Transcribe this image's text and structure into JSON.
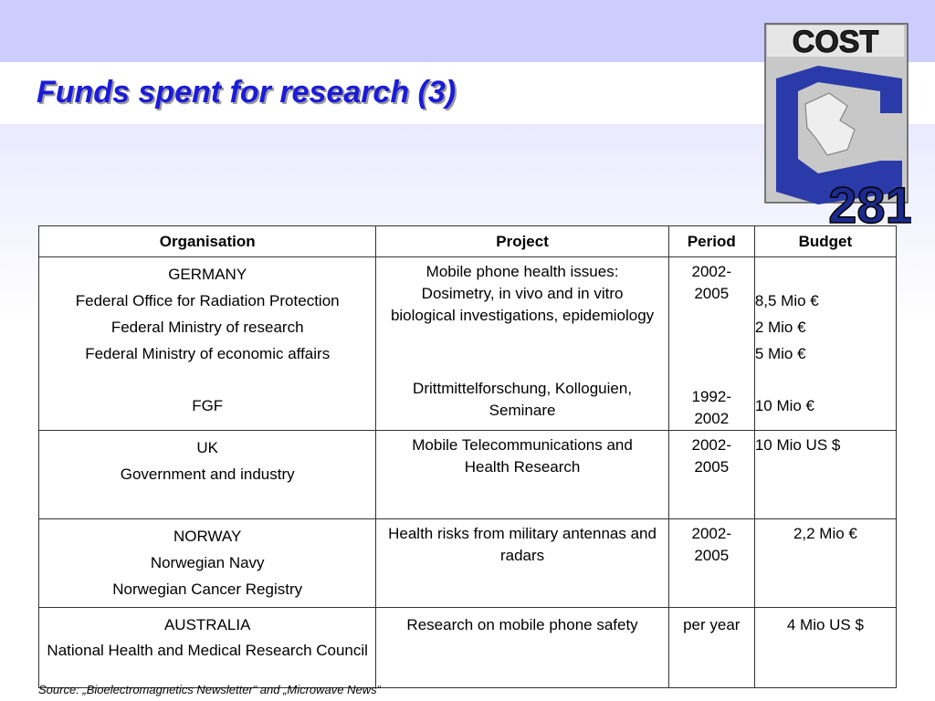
{
  "title": "Funds spent for research (3)",
  "logo": {
    "name": "COST",
    "number": "281"
  },
  "table": {
    "headers": [
      "Organisation",
      "Project",
      "Period",
      "Budget"
    ],
    "germany": {
      "org": [
        "GERMANY",
        "Federal Office for Radiation Protection",
        "Federal Ministry of research",
        "Federal Ministry of economic affairs"
      ],
      "org_fgf": "FGF",
      "project": "Mobile phone health issues: Dosimetry, in vivo and in vitro biological investigations, epidemiology",
      "project_fgf": "Drittmittelforschung, Kolloguien, Seminare",
      "period": "2002-2005",
      "period_fgf": "1992-2002",
      "budget": [
        "8,5 Mio €",
        "2 Mio €",
        "5 Mio €"
      ],
      "budget_fgf": "10 Mio €"
    },
    "uk": {
      "org": [
        "UK",
        "Government and industry"
      ],
      "project": "Mobile Telecommunications and Health Research",
      "period": "2002-2005",
      "budget": "10 Mio US $"
    },
    "norway": {
      "org": [
        "NORWAY",
        "Norwegian Navy",
        "Norwegian Cancer Registry"
      ],
      "project": "Health risks from military antennas and radars",
      "period": "2002-2005",
      "budget": "2,2 Mio €"
    },
    "australia": {
      "org": [
        "AUSTRALIA",
        "National Health and Medical Research Council"
      ],
      "project": "Research on mobile phone safety",
      "period": "per year",
      "budget": "4 Mio US $"
    }
  },
  "source": "Source: „Bioelectromagnetics Newsletter“ and „Microwave News“"
}
